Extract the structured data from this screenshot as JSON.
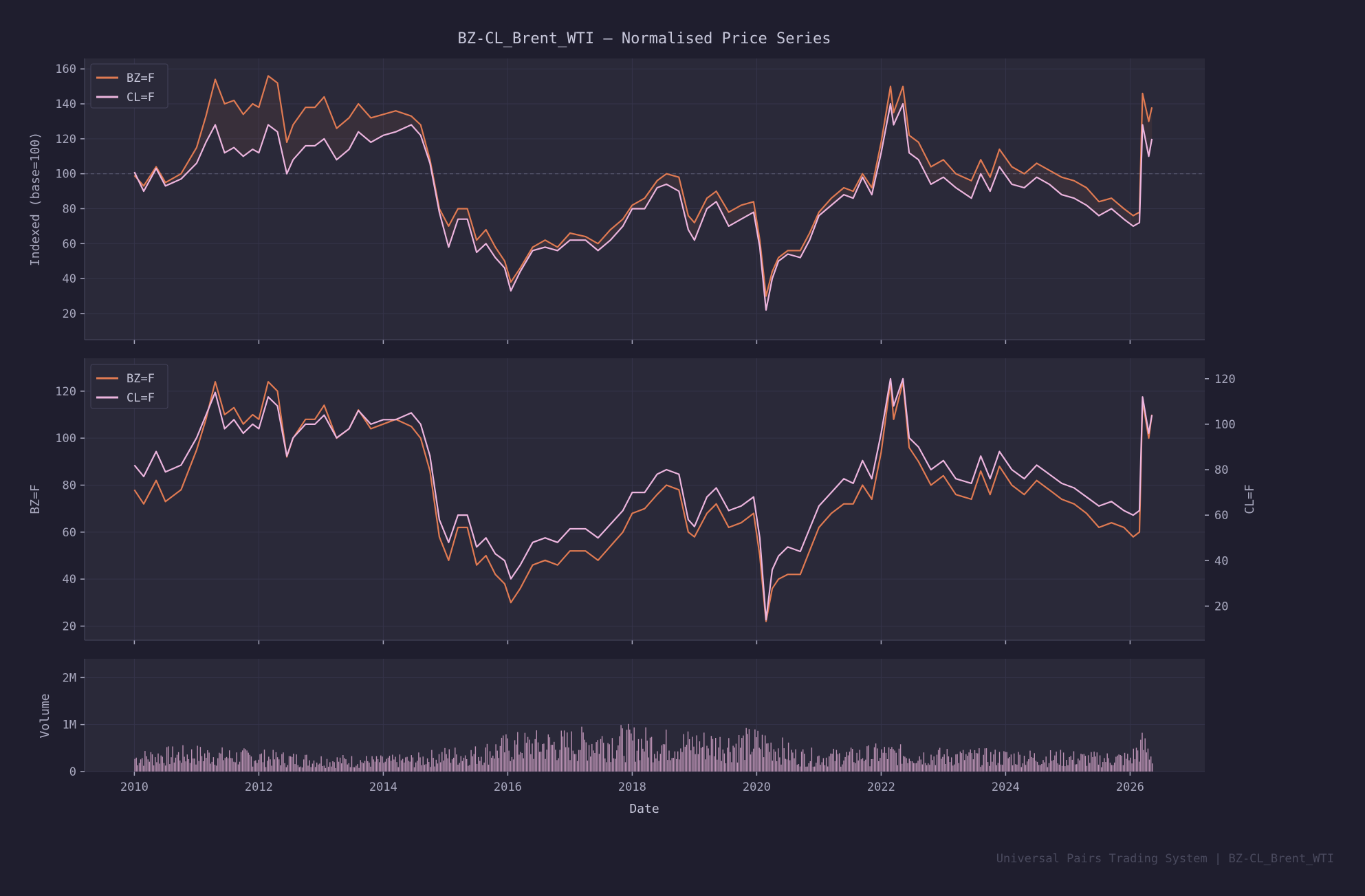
{
  "figure": {
    "title": "BZ-CL_Brent_WTI  —  Normalised Price Series",
    "footer": "Universal Pairs Trading System  |  BZ-CL_Brent_WTI",
    "xlabel": "Date",
    "x_ticks": [
      "2010",
      "2012",
      "2014",
      "2016",
      "2018",
      "2020",
      "2022",
      "2024",
      "2026"
    ],
    "x_tick_values": [
      2010,
      2012,
      2014,
      2016,
      2018,
      2020,
      2022,
      2024,
      2026
    ],
    "xlim": [
      2009.2,
      2027.2
    ]
  },
  "colors": {
    "background": "#1f1e2e",
    "panel": "#2a2939",
    "grid": "#35344a",
    "text": "#c7c7da",
    "tick": "#a9a9bf",
    "footer": "#4a4a5e",
    "bz": "#e07a52",
    "cl": "#ecb5de"
  },
  "chart_data": [
    {
      "type": "line",
      "panel": "normalised",
      "ylabel": "Indexed (base=100)",
      "ylim": [
        5,
        166
      ],
      "y_ticks": [
        20,
        40,
        60,
        80,
        100,
        120,
        140,
        160
      ],
      "reference_line": 100,
      "legend": "top-left",
      "x": [
        2010.0,
        2010.15,
        2010.35,
        2010.5,
        2010.75,
        2011.0,
        2011.15,
        2011.3,
        2011.45,
        2011.6,
        2011.75,
        2011.9,
        2012.0,
        2012.15,
        2012.3,
        2012.45,
        2012.55,
        2012.75,
        2012.9,
        2013.05,
        2013.25,
        2013.45,
        2013.6,
        2013.8,
        2014.0,
        2014.2,
        2014.45,
        2014.6,
        2014.75,
        2014.9,
        2015.05,
        2015.2,
        2015.35,
        2015.5,
        2015.65,
        2015.8,
        2015.95,
        2016.05,
        2016.2,
        2016.4,
        2016.6,
        2016.8,
        2017.0,
        2017.25,
        2017.45,
        2017.65,
        2017.85,
        2018.0,
        2018.2,
        2018.4,
        2018.55,
        2018.75,
        2018.9,
        2019.0,
        2019.2,
        2019.35,
        2019.55,
        2019.75,
        2019.95,
        2020.05,
        2020.15,
        2020.25,
        2020.35,
        2020.5,
        2020.7,
        2020.85,
        2021.0,
        2021.2,
        2021.4,
        2021.55,
        2021.7,
        2021.85,
        2022.0,
        2022.15,
        2022.2,
        2022.35,
        2022.45,
        2022.6,
        2022.8,
        2023.0,
        2023.2,
        2023.45,
        2023.6,
        2023.75,
        2023.9,
        2024.1,
        2024.3,
        2024.5,
        2024.7,
        2024.9,
        2025.1,
        2025.3,
        2025.5,
        2025.7,
        2025.9,
        2026.05,
        2026.15,
        2026.2,
        2026.3,
        2026.35
      ],
      "series": [
        {
          "name": "BZ=F",
          "values": [
            99,
            93,
            104,
            95,
            100,
            115,
            133,
            154,
            140,
            142,
            134,
            140,
            138,
            156,
            152,
            118,
            128,
            138,
            138,
            144,
            126,
            132,
            140,
            132,
            134,
            136,
            133,
            128,
            108,
            80,
            70,
            80,
            80,
            62,
            68,
            58,
            50,
            38,
            46,
            58,
            62,
            58,
            66,
            64,
            60,
            68,
            74,
            82,
            86,
            96,
            100,
            98,
            76,
            72,
            86,
            90,
            78,
            82,
            84,
            62,
            30,
            44,
            52,
            56,
            56,
            66,
            78,
            86,
            92,
            90,
            100,
            92,
            118,
            150,
            135,
            150,
            122,
            118,
            104,
            108,
            100,
            96,
            108,
            98,
            114,
            104,
            100,
            106,
            102,
            98,
            96,
            92,
            84,
            86,
            80,
            76,
            78,
            146,
            130,
            138
          ]
        },
        {
          "name": "CL=F",
          "values": [
            101,
            90,
            103,
            93,
            97,
            106,
            118,
            128,
            112,
            115,
            110,
            114,
            112,
            128,
            124,
            100,
            108,
            116,
            116,
            120,
            108,
            114,
            124,
            118,
            122,
            124,
            128,
            122,
            106,
            78,
            58,
            74,
            74,
            55,
            60,
            52,
            46,
            33,
            44,
            56,
            58,
            56,
            62,
            62,
            56,
            62,
            70,
            80,
            80,
            92,
            94,
            90,
            68,
            62,
            80,
            84,
            70,
            74,
            78,
            58,
            22,
            40,
            50,
            54,
            52,
            62,
            76,
            82,
            88,
            86,
            98,
            88,
            112,
            140,
            128,
            140,
            112,
            108,
            94,
            98,
            92,
            86,
            100,
            90,
            104,
            94,
            92,
            98,
            94,
            88,
            86,
            82,
            76,
            80,
            74,
            70,
            72,
            128,
            110,
            120
          ]
        }
      ]
    },
    {
      "type": "line",
      "panel": "dual_axis",
      "ylabel": "BZ=F",
      "ylabel_right": "CL=F",
      "ylim": [
        14,
        134
      ],
      "ylim_right": [
        5,
        129
      ],
      "y_ticks": [
        20,
        40,
        60,
        80,
        100,
        120
      ],
      "y_ticks_right": [
        20,
        40,
        60,
        80,
        100,
        120
      ],
      "legend": "top-left",
      "series": [
        {
          "name": "BZ=F",
          "axis": "left",
          "values": [
            78,
            72,
            82,
            73,
            78,
            95,
            108,
            124,
            110,
            113,
            106,
            110,
            108,
            124,
            120,
            92,
            100,
            108,
            108,
            114,
            100,
            104,
            112,
            104,
            106,
            108,
            105,
            100,
            86,
            58,
            48,
            62,
            62,
            46,
            50,
            42,
            38,
            30,
            36,
            46,
            48,
            46,
            52,
            52,
            48,
            54,
            60,
            68,
            70,
            76,
            80,
            78,
            60,
            58,
            68,
            72,
            62,
            64,
            68,
            50,
            22,
            36,
            40,
            42,
            42,
            52,
            62,
            68,
            72,
            72,
            80,
            74,
            94,
            124,
            108,
            124,
            96,
            90,
            80,
            84,
            76,
            74,
            86,
            76,
            88,
            80,
            76,
            82,
            78,
            74,
            72,
            68,
            62,
            64,
            62,
            58,
            60,
            116,
            100,
            110
          ]
        },
        {
          "name": "CL=F",
          "axis": "right",
          "values": [
            82,
            77,
            88,
            79,
            82,
            94,
            104,
            114,
            98,
            102,
            96,
            100,
            98,
            112,
            108,
            86,
            94,
            100,
            100,
            104,
            94,
            98,
            106,
            100,
            102,
            102,
            105,
            100,
            86,
            58,
            48,
            60,
            60,
            46,
            50,
            43,
            40,
            32,
            38,
            48,
            50,
            48,
            54,
            54,
            50,
            56,
            62,
            70,
            70,
            78,
            80,
            78,
            58,
            55,
            68,
            72,
            62,
            64,
            68,
            50,
            14,
            36,
            42,
            46,
            44,
            54,
            64,
            70,
            76,
            74,
            84,
            76,
            96,
            120,
            108,
            120,
            94,
            90,
            80,
            84,
            76,
            74,
            86,
            76,
            88,
            80,
            76,
            82,
            78,
            74,
            72,
            68,
            64,
            66,
            62,
            60,
            62,
            112,
            96,
            104
          ]
        }
      ]
    },
    {
      "type": "bar",
      "panel": "volume",
      "ylabel": "Volume",
      "ylim": [
        0,
        2400000
      ],
      "y_ticks": [
        0,
        1000000,
        2000000
      ],
      "y_tick_labels": [
        "0",
        "1M",
        "2M"
      ],
      "bar_count": 700,
      "envelope": {
        "x": [
          2010.0,
          2010.5,
          2011.0,
          2011.5,
          2012.0,
          2012.5,
          2013.0,
          2013.5,
          2014.0,
          2014.5,
          2015.0,
          2015.5,
          2016.0,
          2016.5,
          2017.0,
          2017.5,
          2018.0,
          2018.5,
          2019.0,
          2019.5,
          2020.0,
          2020.3,
          2020.6,
          2021.0,
          2021.5,
          2022.0,
          2022.5,
          2023.0,
          2023.5,
          2024.0,
          2024.5,
          2025.0,
          2025.5,
          2026.0,
          2026.2,
          2026.35
        ],
        "values": [
          350000,
          420000,
          450000,
          400000,
          380000,
          330000,
          300000,
          280000,
          270000,
          300000,
          420000,
          450000,
          650000,
          700000,
          720000,
          800000,
          780000,
          720000,
          720000,
          700000,
          750000,
          650000,
          420000,
          380000,
          400000,
          480000,
          430000,
          400000,
          390000,
          380000,
          370000,
          360000,
          330000,
          350000,
          700000,
          400000
        ]
      }
    }
  ]
}
